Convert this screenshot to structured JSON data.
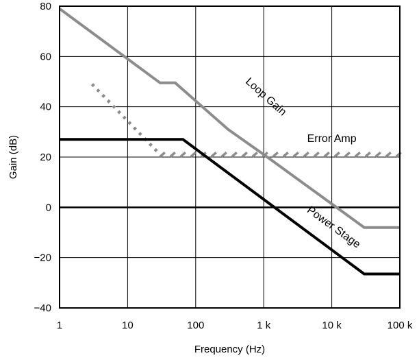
{
  "chart_data": {
    "type": "line",
    "xscale": "log",
    "xlim": [
      1,
      100000
    ],
    "ylim": [
      -40,
      80
    ],
    "grid": true,
    "xlabel": "Frequency  (Hz)",
    "ylabel": "Gain (dB)",
    "x_ticks": [
      {
        "value": 1,
        "label": "1"
      },
      {
        "value": 10,
        "label": "10"
      },
      {
        "value": 100,
        "label": "100"
      },
      {
        "value": 1000,
        "label": "1 k"
      },
      {
        "value": 10000,
        "label": "10 k"
      },
      {
        "value": 100000,
        "label": "100 k"
      }
    ],
    "y_ticks": [
      {
        "value": 80,
        "label": "80"
      },
      {
        "value": 60,
        "label": "60"
      },
      {
        "value": 40,
        "label": "40"
      },
      {
        "value": 20,
        "label": "20"
      },
      {
        "value": 0,
        "label": "0"
      },
      {
        "value": -20,
        "label": "−20"
      },
      {
        "value": -40,
        "label": "−40"
      }
    ],
    "series": [
      {
        "name": "Loop Gain",
        "color": "#8c8c8c",
        "style": "solid",
        "points": [
          [
            1,
            79
          ],
          [
            30,
            49.5
          ],
          [
            50,
            49.5
          ],
          [
            300,
            31
          ],
          [
            1000,
            21
          ],
          [
            30000,
            -8
          ],
          [
            100000,
            -8
          ]
        ]
      },
      {
        "name": "Error Amp",
        "color": "#8c8c8c",
        "style": "dotted-then-hatched",
        "points": [
          [
            3,
            49
          ],
          [
            30,
            21
          ],
          [
            100000,
            21
          ]
        ]
      },
      {
        "name": "Power Stage",
        "color": "#000000",
        "style": "solid",
        "points": [
          [
            1,
            27
          ],
          [
            65,
            27
          ],
          [
            30000,
            -26.5
          ],
          [
            100000,
            -26.5
          ]
        ]
      }
    ],
    "reference_lines": [
      {
        "y": 0,
        "color": "#000000"
      }
    ],
    "annotations": [
      {
        "text": "Loop Gain",
        "x": 1000,
        "y": 43,
        "rotate": 42
      },
      {
        "text": "Error Amp",
        "x": 10000,
        "y": 26,
        "rotate": 0
      },
      {
        "text": "Power Stage",
        "x": 10000,
        "y": -9,
        "rotate": 36
      }
    ]
  }
}
